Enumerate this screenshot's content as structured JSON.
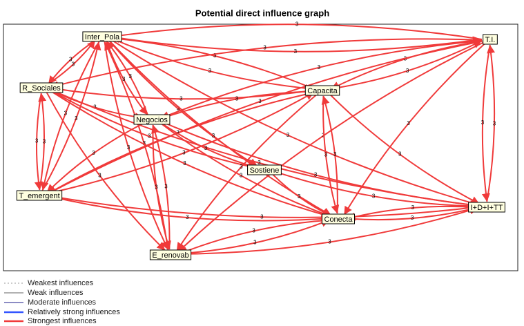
{
  "header": {
    "title": "Potential direct influence graph"
  },
  "nodes": [
    {
      "label": "Inter_Pola"
    },
    {
      "label": "T.I."
    },
    {
      "label": "R_Sociales"
    },
    {
      "label": "Capacita"
    },
    {
      "label": "Negocios"
    },
    {
      "label": "Sostiene"
    },
    {
      "label": "T_emergent"
    },
    {
      "label": "I+D+I+TT"
    },
    {
      "label": "Conecta"
    },
    {
      "label": "E_renovab"
    }
  ],
  "edges": [
    {
      "from": 0,
      "to": 1,
      "value": 3
    },
    {
      "from": 1,
      "to": 0,
      "value": 3
    },
    {
      "from": 0,
      "to": 2,
      "value": 3
    },
    {
      "from": 2,
      "to": 0,
      "value": 3
    },
    {
      "from": 0,
      "to": 3,
      "value": 3
    },
    {
      "from": 3,
      "to": 0,
      "value": 3
    },
    {
      "from": 0,
      "to": 4,
      "value": 3
    },
    {
      "from": 4,
      "to": 0,
      "value": 3
    },
    {
      "from": 0,
      "to": 5,
      "value": 3
    },
    {
      "from": 0,
      "to": 6,
      "value": 3
    },
    {
      "from": 6,
      "to": 0,
      "value": 3
    },
    {
      "from": 0,
      "to": 7,
      "value": 3
    },
    {
      "from": 0,
      "to": 8,
      "value": 3
    },
    {
      "from": 0,
      "to": 9,
      "value": 3
    },
    {
      "from": 9,
      "to": 0,
      "value": 3
    },
    {
      "from": 1,
      "to": 2,
      "value": 3
    },
    {
      "from": 1,
      "to": 3,
      "value": 3
    },
    {
      "from": 3,
      "to": 1,
      "value": 3
    },
    {
      "from": 1,
      "to": 4,
      "value": 3
    },
    {
      "from": 1,
      "to": 6,
      "value": 3
    },
    {
      "from": 1,
      "to": 7,
      "value": 3
    },
    {
      "from": 7,
      "to": 1,
      "value": 3
    },
    {
      "from": 1,
      "to": 8,
      "value": 3
    },
    {
      "from": 1,
      "to": 9,
      "value": 3
    },
    {
      "from": 2,
      "to": 3,
      "value": 3
    },
    {
      "from": 2,
      "to": 4,
      "value": 3
    },
    {
      "from": 2,
      "to": 5,
      "value": 3
    },
    {
      "from": 2,
      "to": 6,
      "value": 3
    },
    {
      "from": 6,
      "to": 2,
      "value": 3
    },
    {
      "from": 2,
      "to": 7,
      "value": 3
    },
    {
      "from": 2,
      "to": 8,
      "value": 3
    },
    {
      "from": 2,
      "to": 9,
      "value": 3
    },
    {
      "from": 3,
      "to": 4,
      "value": 3
    },
    {
      "from": 3,
      "to": 6,
      "value": 3
    },
    {
      "from": 3,
      "to": 7,
      "value": 3
    },
    {
      "from": 3,
      "to": 8,
      "value": 3
    },
    {
      "from": 8,
      "to": 3,
      "value": 3
    },
    {
      "from": 3,
      "to": 9,
      "value": 3
    },
    {
      "from": 4,
      "to": 5,
      "value": 3
    },
    {
      "from": 4,
      "to": 7,
      "value": 3
    },
    {
      "from": 4,
      "to": 8,
      "value": 3
    },
    {
      "from": 4,
      "to": 9,
      "value": 3
    },
    {
      "from": 9,
      "to": 4,
      "value": 3
    },
    {
      "from": 4,
      "to": 6,
      "value": 3
    },
    {
      "from": 5,
      "to": 7,
      "value": 3
    },
    {
      "from": 5,
      "to": 8,
      "value": 3
    },
    {
      "from": 6,
      "to": 7,
      "value": 3
    },
    {
      "from": 6,
      "to": 8,
      "value": 3
    },
    {
      "from": 6,
      "to": 3,
      "value": 3
    },
    {
      "from": 7,
      "to": 8,
      "value": 3
    },
    {
      "from": 8,
      "to": 7,
      "value": 3
    },
    {
      "from": 8,
      "to": 9,
      "value": 3
    },
    {
      "from": 9,
      "to": 8,
      "value": 3
    },
    {
      "from": 9,
      "to": 7,
      "value": 3
    }
  ],
  "legend": [
    "Weakest influences",
    "Weak influences",
    "Moderate influences",
    "Relatively strong influences",
    "Strongest influences"
  ]
}
